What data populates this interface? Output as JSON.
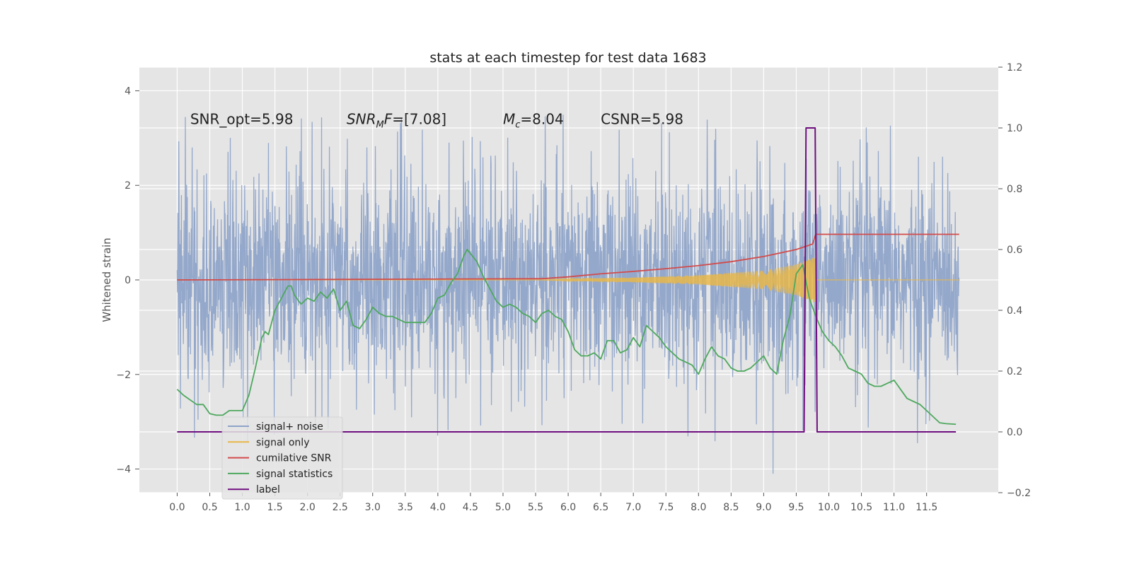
{
  "colors": {
    "background": "#ffffff",
    "plot_bg": "#e5e5e5",
    "grid": "#ffffff",
    "noise": "#8fa4c9",
    "signal": "#e8b74a",
    "cumulative_snr": "#d24b4b",
    "signal_statistics": "#4ea85e",
    "label": "#6f0f7f",
    "text": "#222222",
    "tick_text": "#555555"
  },
  "chart_data": {
    "type": "line",
    "title": "stats at each timestep for test data 1683",
    "ylabel": "Whitened strain",
    "xlabel": "",
    "grid": true,
    "legend_placement": "lower-left",
    "xlim": [
      -0.58,
      12.6
    ],
    "ylim": [
      -4.5,
      4.5
    ],
    "y2lim": [
      -0.2,
      1.2
    ],
    "x_ticks": [
      "0.0",
      "0.5",
      "1.0",
      "1.5",
      "2.0",
      "2.5",
      "3.0",
      "3.5",
      "4.0",
      "4.5",
      "5.0",
      "5.5",
      "6.0",
      "6.5",
      "7.0",
      "7.5",
      "8.0",
      "8.5",
      "9.0",
      "9.5",
      "10.0",
      "10.5",
      "11.0",
      "11.5"
    ],
    "y_ticks": [
      "4",
      "2",
      "0",
      "−2",
      "−4"
    ],
    "y2_ticks": [
      "1.2",
      "1.0",
      "0.8",
      "0.6",
      "0.4",
      "0.2",
      "0.0",
      "−0.2"
    ],
    "annotations": [
      {
        "id": "snr-opt",
        "text": "SNR_opt=5.98",
        "x": 0.2,
        "y": 3.3
      },
      {
        "id": "snr-mf",
        "text": "SNR_MF=[7.08]",
        "base": "SNR",
        "sub": "M",
        "rest": "F=[7.08]",
        "x": 2.6,
        "y": 3.3
      },
      {
        "id": "mc",
        "text": "M_c=8.04",
        "base": "M",
        "sub": "c",
        "rest": "=8.04",
        "x": 5.0,
        "y": 3.3
      },
      {
        "id": "csnr",
        "text": "CSNR=5.98",
        "x": 6.5,
        "y": 3.3
      }
    ],
    "legend": [
      {
        "name": "signal+ noise",
        "color": "#8fa4c9"
      },
      {
        "name": "signal only",
        "color": "#e8b74a"
      },
      {
        "name": "cumilative SNR",
        "color": "#d24b4b"
      },
      {
        "name": "signal statistics",
        "color": "#4ea85e"
      },
      {
        "name": "label",
        "color": "#6f0f7f"
      }
    ],
    "series": [
      {
        "name": "signal+ noise",
        "axis": "left",
        "noise_envelope": {
          "x_range": [
            0.0,
            12.0
          ],
          "typical_amplitude": 2.0,
          "peak_amplitude": 4.1,
          "min_value": -4.1
        }
      },
      {
        "name": "signal only",
        "axis": "left",
        "envelope": {
          "x": [
            5.5,
            6.0,
            7.0,
            8.0,
            9.0,
            9.5,
            9.8,
            12.0
          ],
          "amplitude": [
            0.0,
            0.02,
            0.05,
            0.1,
            0.2,
            0.33,
            0.5,
            0.0
          ]
        }
      },
      {
        "name": "cumilative SNR",
        "axis": "right",
        "x": [
          0.0,
          3.0,
          5.6,
          6.0,
          6.5,
          7.0,
          7.5,
          8.0,
          8.5,
          9.0,
          9.5,
          9.75,
          9.8,
          12.0
        ],
        "y": [
          0.5,
          0.502,
          0.504,
          0.51,
          0.52,
          0.528,
          0.537,
          0.547,
          0.56,
          0.577,
          0.6,
          0.618,
          0.65,
          0.65
        ]
      },
      {
        "name": "signal statistics",
        "axis": "right",
        "x": [
          0.0,
          0.1,
          0.3,
          0.4,
          0.5,
          0.6,
          0.7,
          0.8,
          0.9,
          1.0,
          1.1,
          1.2,
          1.3,
          1.35,
          1.4,
          1.5,
          1.6,
          1.7,
          1.75,
          1.8,
          1.9,
          2.0,
          2.1,
          2.2,
          2.3,
          2.4,
          2.5,
          2.6,
          2.7,
          2.8,
          2.9,
          3.0,
          3.1,
          3.2,
          3.3,
          3.5,
          3.6,
          3.7,
          3.8,
          3.9,
          4.0,
          4.1,
          4.2,
          4.3,
          4.4,
          4.45,
          4.6,
          4.7,
          4.8,
          4.9,
          5.0,
          5.1,
          5.2,
          5.3,
          5.4,
          5.5,
          5.6,
          5.7,
          5.8,
          5.9,
          6.0,
          6.1,
          6.2,
          6.3,
          6.4,
          6.5,
          6.6,
          6.7,
          6.8,
          6.9,
          7.0,
          7.1,
          7.2,
          7.3,
          7.4,
          7.5,
          7.6,
          7.7,
          7.8,
          7.9,
          8.0,
          8.1,
          8.2,
          8.3,
          8.4,
          8.5,
          8.6,
          8.7,
          8.8,
          8.9,
          9.0,
          9.1,
          9.2,
          9.3,
          9.4,
          9.5,
          9.6,
          9.7,
          9.8,
          9.9,
          10.0,
          10.1,
          10.2,
          10.3,
          10.4,
          10.5,
          10.6,
          10.7,
          10.8,
          10.9,
          11.0,
          11.1,
          11.2,
          11.3,
          11.4,
          11.5,
          11.6,
          11.7,
          11.8,
          11.95
        ],
        "y": [
          0.14,
          0.12,
          0.09,
          0.09,
          0.06,
          0.055,
          0.055,
          0.07,
          0.07,
          0.07,
          0.12,
          0.21,
          0.31,
          0.33,
          0.32,
          0.4,
          0.44,
          0.48,
          0.48,
          0.45,
          0.42,
          0.44,
          0.43,
          0.46,
          0.44,
          0.47,
          0.4,
          0.43,
          0.35,
          0.34,
          0.37,
          0.41,
          0.39,
          0.38,
          0.38,
          0.36,
          0.36,
          0.36,
          0.36,
          0.39,
          0.44,
          0.45,
          0.49,
          0.52,
          0.58,
          0.6,
          0.56,
          0.51,
          0.47,
          0.43,
          0.41,
          0.42,
          0.41,
          0.39,
          0.38,
          0.36,
          0.39,
          0.4,
          0.38,
          0.37,
          0.33,
          0.27,
          0.25,
          0.25,
          0.26,
          0.24,
          0.3,
          0.3,
          0.26,
          0.27,
          0.31,
          0.28,
          0.35,
          0.33,
          0.31,
          0.28,
          0.26,
          0.24,
          0.23,
          0.22,
          0.19,
          0.24,
          0.28,
          0.25,
          0.24,
          0.21,
          0.2,
          0.2,
          0.21,
          0.23,
          0.25,
          0.21,
          0.19,
          0.3,
          0.38,
          0.52,
          0.55,
          0.44,
          0.38,
          0.33,
          0.3,
          0.28,
          0.25,
          0.21,
          0.2,
          0.19,
          0.16,
          0.15,
          0.15,
          0.16,
          0.17,
          0.14,
          0.11,
          0.1,
          0.09,
          0.07,
          0.05,
          0.03,
          0.027,
          0.025
        ]
      },
      {
        "name": "label",
        "axis": "right",
        "x": [
          0.0,
          9.62,
          9.65,
          9.68,
          9.75,
          9.79,
          9.82,
          11.95
        ],
        "y": [
          0.0,
          0.0,
          1.0,
          1.0,
          1.0,
          1.0,
          0.0,
          0.0
        ]
      }
    ]
  }
}
